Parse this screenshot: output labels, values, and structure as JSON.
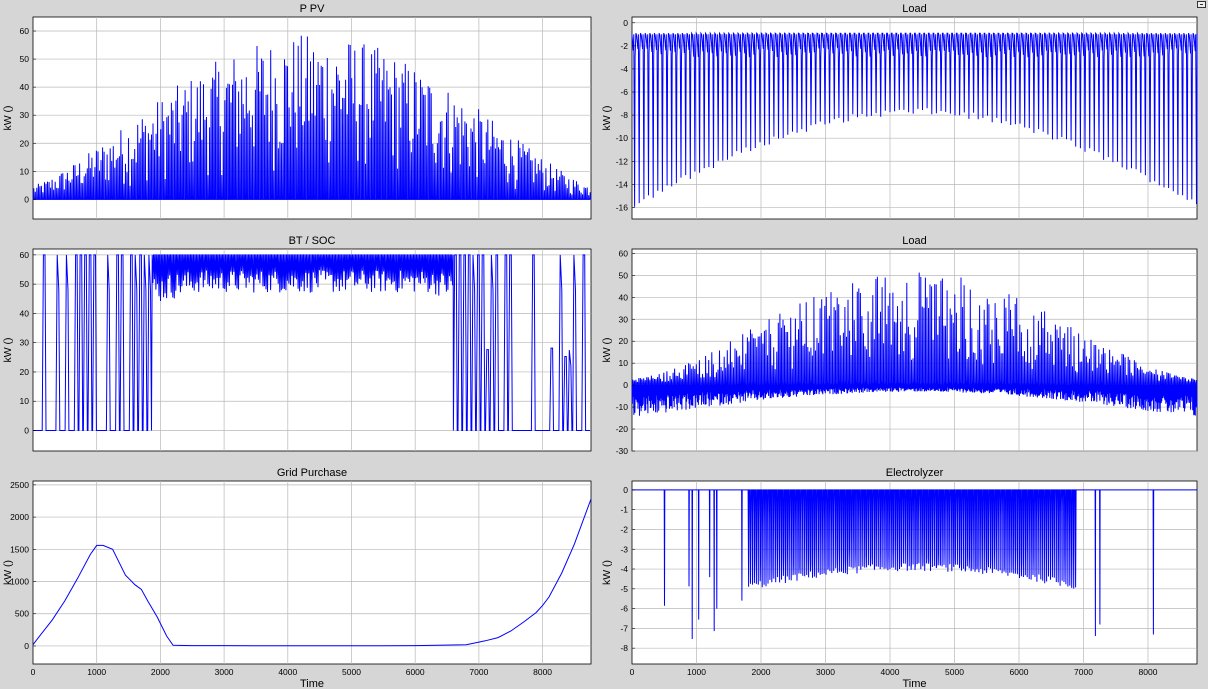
{
  "chart_data": [
    {
      "type": "line",
      "title": "P PV",
      "xlabel": "",
      "ylabel": "kW ()",
      "xlim": [
        0,
        8760
      ],
      "ylim": [
        -7,
        65
      ],
      "yticks": [
        0,
        10,
        20,
        30,
        40,
        50,
        60
      ],
      "xticks": [],
      "grid": true,
      "color": "#0000ff",
      "pattern": "daily_spikes",
      "description_params": {
        "base": 0,
        "peak_min": 5,
        "peak_max": 59,
        "peak_center": 4000,
        "days": 365
      },
      "series": [
        {
          "values": [
            0,
            4,
            6,
            9,
            13,
            20,
            29,
            40,
            53,
            59,
            57,
            50,
            42,
            38,
            32,
            24,
            18,
            12,
            8,
            6,
            5
          ]
        }
      ]
    },
    {
      "type": "line",
      "title": "Load",
      "xlabel": "",
      "ylabel": "kW ()",
      "xlim": [
        0,
        8760
      ],
      "ylim": [
        -17,
        0.5
      ],
      "yticks": [
        0,
        -2,
        -4,
        -6,
        -8,
        -10,
        -12,
        -14,
        -16
      ],
      "xticks": [],
      "grid": true,
      "color": "#0000ff",
      "pattern": "load_band",
      "description_params": {
        "top": -0.8,
        "band_low": -3,
        "trough_edge": -16,
        "trough_center": -8
      },
      "series": [
        {
          "values": [
            -16,
            -15,
            -13,
            -11,
            -9.5,
            -8.5,
            -8,
            -8.5,
            -9.5,
            -11,
            -13,
            -15,
            -16
          ]
        }
      ]
    },
    {
      "type": "line",
      "title": "BT / SOC",
      "xlabel": "",
      "ylabel": "kW ()",
      "xlim": [
        0,
        8760
      ],
      "ylim": [
        -7,
        62
      ],
      "yticks": [
        0,
        10,
        20,
        30,
        40,
        50,
        60
      ],
      "xticks": [],
      "grid": true,
      "color": "#0000ff",
      "pattern": "soc",
      "description_params": {
        "min": 0,
        "max": 60,
        "summer_floor_edge": 28,
        "summer_floor_center": 47,
        "summer_start": 1800,
        "summer_end": 6600
      },
      "series": [
        {
          "values": [
            0,
            60,
            0,
            60,
            45,
            48,
            50,
            50,
            50,
            48,
            45,
            60,
            0,
            60,
            0
          ]
        }
      ]
    },
    {
      "type": "line",
      "title": "Load",
      "xlabel": "",
      "ylabel": "kW ()",
      "xlim": [
        0,
        8760
      ],
      "ylim": [
        -30,
        62
      ],
      "yticks": [
        60,
        50,
        40,
        30,
        20,
        10,
        0,
        -10,
        -20,
        -30
      ],
      "xticks": [],
      "grid": true,
      "color": "#0000ff",
      "pattern": "net_load",
      "description_params": {
        "base": 0,
        "pos_peak_center": 52,
        "neg_trough_edge": -15,
        "neg_trough_center": -3
      },
      "series": [
        {
          "values": [
            -15,
            -12,
            -8,
            -5,
            5,
            20,
            40,
            52,
            45,
            30,
            15,
            5,
            -5,
            -10,
            -15
          ]
        }
      ]
    },
    {
      "type": "line",
      "title": "Grid Purchase",
      "xlabel": "Time",
      "ylabel": "kW ()",
      "xlim": [
        0,
        8760
      ],
      "ylim": [
        -280,
        2560
      ],
      "yticks": [
        0,
        500,
        1000,
        1500,
        2000,
        2500
      ],
      "xticks": [
        0,
        1000,
        2000,
        3000,
        4000,
        5000,
        6000,
        7000,
        8000
      ],
      "grid": true,
      "color": "#0000ff",
      "pattern": "smooth",
      "x": [
        0,
        100,
        300,
        500,
        700,
        900,
        1000,
        1100,
        1250,
        1300,
        1450,
        1600,
        1700,
        1800,
        1950,
        2100,
        2200,
        2500,
        3000,
        4000,
        5000,
        6000,
        6800,
        7000,
        7100,
        7300,
        7500,
        7700,
        7900,
        8000,
        8100,
        8300,
        8500,
        8760
      ],
      "series": [
        {
          "values": [
            20,
            150,
            400,
            700,
            1050,
            1420,
            1560,
            1560,
            1500,
            1400,
            1100,
            950,
            880,
            700,
            450,
            150,
            10,
            5,
            5,
            2,
            2,
            5,
            20,
            60,
            80,
            130,
            230,
            370,
            520,
            630,
            760,
            1130,
            1580,
            2280
          ]
        }
      ]
    },
    {
      "type": "line",
      "title": "Electrolyzer",
      "xlabel": "Time",
      "ylabel": "kW ()",
      "xlim": [
        0,
        8760
      ],
      "ylim": [
        -8.8,
        0.45
      ],
      "yticks": [
        0,
        -1,
        -2,
        -3,
        -4,
        -5,
        -6,
        -7,
        -8
      ],
      "xticks": [
        0,
        1000,
        2000,
        3000,
        4000,
        5000,
        6000,
        7000,
        8000
      ],
      "grid": true,
      "color": "#0000ff",
      "pattern": "electrolyzer",
      "description_params": {
        "base": 0,
        "dense_start": 1800,
        "dense_end": 6900,
        "trough_edge": -6.6,
        "trough_center": -4.1
      },
      "series": [
        {
          "values": [
            -7.8,
            -7.6,
            -7.6,
            -7.5,
            -7.3,
            -6.6,
            -5.5,
            -4.8,
            -4.2,
            -4.1,
            -4.4,
            -5.3,
            -6.0,
            -6.6,
            -6.8,
            -7.8
          ]
        }
      ]
    }
  ]
}
